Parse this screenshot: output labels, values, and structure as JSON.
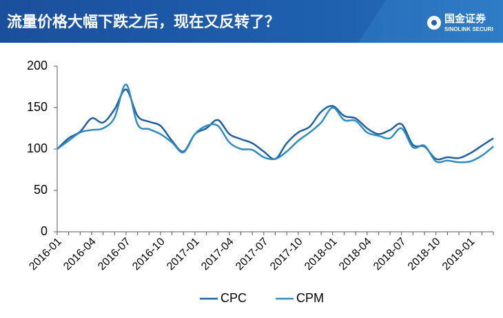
{
  "header": {
    "logo": "国金证券",
    "logo_sub": "SINOLINK SECURI"
  },
  "chart_data": {
    "type": "line",
    "title": "流量价格大幅下跌之后，现在又反转了？",
    "categories": [
      "2016-01",
      null,
      null,
      "2016-04",
      null,
      null,
      "2016-07",
      null,
      null,
      "2016-10",
      null,
      null,
      "2017-01",
      null,
      null,
      "2017-04",
      null,
      null,
      "2017-07",
      null,
      null,
      "2017-10",
      null,
      null,
      "2018-01",
      null,
      null,
      "2018-04",
      null,
      null,
      "2018-07",
      null,
      null,
      "2018-10",
      null,
      null,
      "2019-01",
      null,
      null
    ],
    "series": [
      {
        "name": "CPC",
        "color": "#1f5fa0",
        "values": [
          100,
          113,
          121,
          137,
          132,
          148,
          172,
          140,
          133,
          128,
          110,
          97,
          118,
          125,
          135,
          118,
          112,
          107,
          97,
          88,
          107,
          120,
          127,
          145,
          152,
          140,
          137,
          125,
          118,
          123,
          130,
          105,
          103,
          88,
          90,
          89,
          95,
          104,
          113
        ]
      },
      {
        "name": "CPM",
        "color": "#2e8bc0",
        "values": [
          100,
          110,
          120,
          123,
          125,
          138,
          178,
          130,
          124,
          118,
          108,
          96,
          118,
          128,
          128,
          108,
          100,
          99,
          90,
          88,
          97,
          110,
          120,
          132,
          150,
          135,
          134,
          120,
          116,
          113,
          125,
          102,
          104,
          85,
          86,
          84,
          85,
          92,
          103
        ]
      }
    ],
    "ylim": [
      0,
      200
    ],
    "yticks": [
      0,
      50,
      100,
      150,
      200
    ],
    "grid": false,
    "legend": "bottom"
  }
}
